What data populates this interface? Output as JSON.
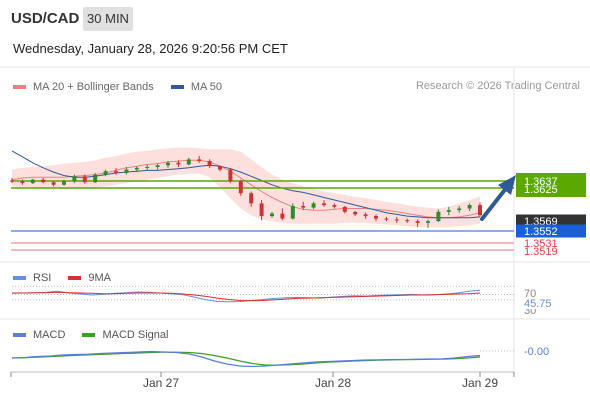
{
  "header": {
    "symbol": "USD/CAD",
    "timeframe": "30 MIN",
    "datetime": "Wednesday, January 28, 2026 9:20:56 PM CET"
  },
  "legend": {
    "ma20_label": "MA 20 + Bollinger Bands",
    "ma50_label": "MA 50",
    "credit": "Research © 2026 Trading Central"
  },
  "rsi_legend": {
    "rsi_label": "RSI",
    "ma_label": "9MA"
  },
  "macd_legend": {
    "macd_label": "MACD",
    "signal_label": "MACD Signal"
  },
  "colors": {
    "ma20": "#f08080",
    "band_fill": "#fde0de",
    "ma50": "#2e5a96",
    "candle_up": "#2e8b2e",
    "candle_down": "#cc3333",
    "green_level": "#5aa800",
    "blue_level": "#1a5fd6",
    "red_level": "#f07070",
    "rsi": "#6a8fd8",
    "rsi_ma": "#d83030",
    "macd": "#5b7fd6",
    "macd_signal": "#3aa020"
  },
  "chart_data": [
    {
      "type": "line",
      "title": "",
      "y_range": [
        1.3505,
        1.37
      ],
      "x_ticks": [
        "Jan 27",
        "Jan 28",
        "Jan 29"
      ],
      "series": [
        {
          "name": "MA 20",
          "values": [
            1.3594,
            1.3596,
            1.3597,
            1.3597,
            1.3597,
            1.3597,
            1.3598,
            1.3599,
            1.36,
            1.3602,
            1.3605,
            1.3608,
            1.361,
            1.3612,
            1.3613,
            1.3615,
            1.3616,
            1.3617,
            1.3617,
            1.3615,
            1.361,
            1.3604,
            1.3596,
            1.3588,
            1.358,
            1.3573,
            1.3567,
            1.3562,
            1.3559,
            1.3558,
            1.3558,
            1.3559,
            1.356,
            1.356,
            1.356,
            1.3559,
            1.3558,
            1.3556,
            1.3554,
            1.3552,
            1.355,
            1.3549,
            1.3549,
            1.355,
            1.3552,
            1.3555
          ]
        },
        {
          "name": "MA 50",
          "values": [
            1.3628,
            1.3621,
            1.3614,
            1.3608,
            1.3603,
            1.3599,
            1.3597,
            1.3597,
            1.3598,
            1.36,
            1.3602,
            1.3603,
            1.3604,
            1.3605,
            1.3605,
            1.3606,
            1.3607,
            1.3608,
            1.361,
            1.3611,
            1.361,
            1.3607,
            1.3603,
            1.3598,
            1.3593,
            1.3588,
            1.3584,
            1.3581,
            1.3579,
            1.3576,
            1.3573,
            1.357,
            1.3567,
            1.3564,
            1.3561,
            1.3558,
            1.3555,
            1.3553,
            1.3551,
            1.355,
            1.3549,
            1.3549,
            1.3549,
            1.3549,
            1.3549,
            1.355
          ]
        },
        {
          "name": "Bollinger Upper",
          "values": [
            1.3606,
            1.3608,
            1.3609,
            1.361,
            1.3611,
            1.3613,
            1.3614,
            1.3615,
            1.3617,
            1.362,
            1.3622,
            1.3625,
            1.3627,
            1.3628,
            1.363,
            1.3631,
            1.3632,
            1.3632,
            1.3631,
            1.363,
            1.363,
            1.363,
            1.3627,
            1.3618,
            1.3609,
            1.36,
            1.3594,
            1.359,
            1.3586,
            1.3583,
            1.358,
            1.3578,
            1.3576,
            1.3574,
            1.3572,
            1.357,
            1.3568,
            1.3566,
            1.3564,
            1.3562,
            1.3561,
            1.356,
            1.3562,
            1.3566,
            1.357,
            1.3574
          ]
        },
        {
          "name": "Bollinger Lower",
          "values": [
            1.3586,
            1.3585,
            1.3585,
            1.3584,
            1.3584,
            1.3583,
            1.3583,
            1.3584,
            1.3585,
            1.3586,
            1.3588,
            1.359,
            1.3592,
            1.3594,
            1.3596,
            1.3598,
            1.36,
            1.3601,
            1.3601,
            1.3597,
            1.3585,
            1.3572,
            1.356,
            1.3552,
            1.3547,
            1.3545,
            1.3543,
            1.3542,
            1.3542,
            1.3542,
            1.3542,
            1.3542,
            1.3543,
            1.3543,
            1.3543,
            1.3542,
            1.3541,
            1.354,
            1.3539,
            1.3538,
            1.3538,
            1.3538,
            1.3538,
            1.3539,
            1.354,
            1.3542
          ]
        }
      ],
      "candles": [
        [
          1.3593,
          1.3596,
          1.359,
          1.3592
        ],
        [
          1.3592,
          1.3594,
          1.3588,
          1.359
        ],
        [
          1.359,
          1.3595,
          1.3589,
          1.3594
        ],
        [
          1.3594,
          1.3596,
          1.359,
          1.3591
        ],
        [
          1.3591,
          1.3592,
          1.3586,
          1.3588
        ],
        [
          1.3588,
          1.3594,
          1.3587,
          1.3592
        ],
        [
          1.3592,
          1.36,
          1.359,
          1.3598
        ],
        [
          1.3598,
          1.36,
          1.3589,
          1.3591
        ],
        [
          1.3591,
          1.3602,
          1.359,
          1.36
        ],
        [
          1.36,
          1.3606,
          1.3598,
          1.3604
        ],
        [
          1.3604,
          1.3608,
          1.36,
          1.3602
        ],
        [
          1.3602,
          1.3609,
          1.36,
          1.3606
        ],
        [
          1.3606,
          1.361,
          1.3603,
          1.3608
        ],
        [
          1.3608,
          1.3612,
          1.3605,
          1.3609
        ],
        [
          1.3609,
          1.3613,
          1.3606,
          1.3611
        ],
        [
          1.3611,
          1.3616,
          1.3608,
          1.3614
        ],
        [
          1.3614,
          1.3617,
          1.3609,
          1.3612
        ],
        [
          1.3612,
          1.362,
          1.3611,
          1.3618
        ],
        [
          1.3618,
          1.3622,
          1.3614,
          1.3616
        ],
        [
          1.3616,
          1.3618,
          1.3608,
          1.361
        ],
        [
          1.361,
          1.3611,
          1.3604,
          1.3606
        ],
        [
          1.3606,
          1.3608,
          1.359,
          1.3592
        ],
        [
          1.3592,
          1.3594,
          1.3575,
          1.3578
        ],
        [
          1.3578,
          1.358,
          1.3562,
          1.3566
        ],
        [
          1.3566,
          1.357,
          1.3546,
          1.3551
        ],
        [
          1.3551,
          1.3556,
          1.3549,
          1.3554
        ],
        [
          1.3554,
          1.356,
          1.3546,
          1.3548
        ],
        [
          1.3548,
          1.3566,
          1.3547,
          1.3563
        ],
        [
          1.3563,
          1.3568,
          1.3558,
          1.3561
        ],
        [
          1.3561,
          1.3568,
          1.3559,
          1.3566
        ],
        [
          1.3566,
          1.357,
          1.3562,
          1.3564
        ],
        [
          1.3564,
          1.3566,
          1.356,
          1.3562
        ],
        [
          1.3562,
          1.3563,
          1.3554,
          1.3556
        ],
        [
          1.3556,
          1.3557,
          1.3551,
          1.3553
        ],
        [
          1.3553,
          1.3555,
          1.3548,
          1.3551
        ],
        [
          1.3551,
          1.3553,
          1.3545,
          1.3548
        ],
        [
          1.3548,
          1.355,
          1.3545,
          1.3547
        ],
        [
          1.3547,
          1.355,
          1.3543,
          1.3546
        ],
        [
          1.3546,
          1.3548,
          1.3543,
          1.3545
        ],
        [
          1.3545,
          1.3547,
          1.3538,
          1.3543
        ],
        [
          1.3543,
          1.3547,
          1.3537,
          1.3545
        ],
        [
          1.3545,
          1.3559,
          1.3544,
          1.3556
        ],
        [
          1.3556,
          1.3562,
          1.3552,
          1.3558
        ],
        [
          1.3558,
          1.3563,
          1.3555,
          1.356
        ],
        [
          1.356,
          1.3566,
          1.3557,
          1.3564
        ],
        [
          1.3564,
          1.3567,
          1.355,
          1.3552
        ]
      ],
      "levels": {
        "green_upper": "1.3637",
        "green_lower": "1.3625",
        "current": "1.3569",
        "blue": "1.3552",
        "red_upper": "1.3531",
        "red_lower": "1.3519"
      }
    },
    {
      "type": "line",
      "title": "RSI",
      "levels": [
        "70",
        "45.75",
        "30"
      ],
      "series": [
        {
          "name": "RSI",
          "values": [
            49,
            50,
            51,
            52,
            55,
            50,
            47,
            44,
            46,
            49,
            51,
            53,
            52,
            50,
            48,
            45,
            38,
            30,
            25,
            24,
            25,
            28,
            31,
            34,
            36,
            37,
            36,
            35,
            38,
            40,
            42,
            41,
            43,
            44,
            45,
            46,
            44,
            45,
            47,
            50,
            55,
            58
          ]
        },
        {
          "name": "9MA",
          "values": [
            50,
            50,
            51,
            51,
            52,
            51,
            50,
            49,
            48,
            48,
            49,
            50,
            50,
            50,
            49,
            47,
            44,
            40,
            35,
            31,
            28,
            27,
            28,
            30,
            32,
            34,
            35,
            36,
            37,
            38,
            39,
            40,
            41,
            42,
            43,
            44,
            44,
            45,
            46,
            47,
            48,
            50
          ]
        }
      ]
    },
    {
      "type": "line",
      "title": "MACD",
      "level": "-0.00",
      "series": [
        {
          "name": "MACD",
          "values": [
            0.0,
            0.05,
            0.15,
            0.2,
            0.3,
            0.35,
            0.38,
            0.45,
            0.5,
            0.55,
            0.6,
            0.65,
            0.6,
            0.55,
            0.4,
            0.1,
            -0.3,
            -0.6,
            -0.8,
            -0.85,
            -0.8,
            -0.7,
            -0.6,
            -0.5,
            -0.4,
            -0.35,
            -0.3,
            -0.25,
            -0.2,
            -0.18,
            -0.15,
            -0.15,
            -0.12,
            -0.1,
            -0.08,
            0.0,
            0.15,
            0.25
          ]
        },
        {
          "name": "MACD Signal",
          "values": [
            0.0,
            0.02,
            0.08,
            0.14,
            0.2,
            0.26,
            0.31,
            0.36,
            0.41,
            0.46,
            0.5,
            0.55,
            0.58,
            0.58,
            0.55,
            0.45,
            0.25,
            0.0,
            -0.3,
            -0.55,
            -0.7,
            -0.72,
            -0.68,
            -0.6,
            -0.5,
            -0.42,
            -0.36,
            -0.3,
            -0.26,
            -0.22,
            -0.19,
            -0.17,
            -0.15,
            -0.13,
            -0.11,
            -0.08,
            0.0,
            0.1
          ]
        }
      ]
    }
  ]
}
